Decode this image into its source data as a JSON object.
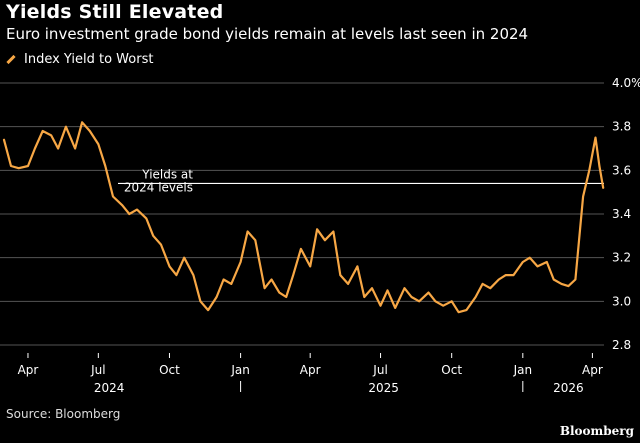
{
  "title": "Yields Still Elevated",
  "subtitle": "Euro investment grade bond yields remain at levels last seen in 2024",
  "source": "Source: Bloomberg",
  "brand": "Bloomberg",
  "colors": {
    "line": "#f7a745",
    "grid": "#555555",
    "reference": "#ffffff",
    "background": "#000000"
  },
  "chart_data": {
    "type": "line",
    "title": "Yields Still Elevated",
    "legend": {
      "placement": "top-left",
      "entries": [
        "Index Yield to Worst"
      ]
    },
    "ylim": [
      2.8,
      4.0
    ],
    "y_axis_side": "right",
    "y_ticks": [
      "2.8",
      "3.0",
      "3.2",
      "3.4",
      "3.6",
      "3.8",
      "4.0%"
    ],
    "x_tick_labels": [
      "Apr",
      "Jul",
      "Oct",
      "Jan",
      "Apr",
      "Jul",
      "Oct",
      "Jan",
      "Apr"
    ],
    "year_labels": [
      "2024",
      "2025",
      "2026"
    ],
    "grid": true,
    "reference_line": {
      "value": 3.54,
      "label_lines": [
        "Yields at",
        "2024 levels"
      ]
    },
    "series": [
      {
        "name": "Index Yield to Worst",
        "x": [
          "2024-03-01",
          "2024-03-10",
          "2024-03-20",
          "2024-04-01",
          "2024-04-10",
          "2024-04-20",
          "2024-05-01",
          "2024-05-10",
          "2024-05-20",
          "2024-06-01",
          "2024-06-10",
          "2024-06-20",
          "2024-07-01",
          "2024-07-10",
          "2024-07-20",
          "2024-08-01",
          "2024-08-10",
          "2024-08-20",
          "2024-09-01",
          "2024-09-10",
          "2024-09-20",
          "2024-10-01",
          "2024-10-10",
          "2024-10-20",
          "2024-11-01",
          "2024-11-10",
          "2024-11-20",
          "2024-12-01",
          "2024-12-10",
          "2024-12-20",
          "2025-01-01",
          "2025-01-10",
          "2025-01-20",
          "2025-02-01",
          "2025-02-10",
          "2025-02-20",
          "2025-03-01",
          "2025-03-10",
          "2025-03-20",
          "2025-04-01",
          "2025-04-10",
          "2025-04-20",
          "2025-05-01",
          "2025-05-10",
          "2025-05-20",
          "2025-06-01",
          "2025-06-10",
          "2025-06-20",
          "2025-07-01",
          "2025-07-10",
          "2025-07-20",
          "2025-08-01",
          "2025-08-10",
          "2025-08-20",
          "2025-09-01",
          "2025-09-10",
          "2025-09-20",
          "2025-10-01",
          "2025-10-10",
          "2025-10-20",
          "2025-11-01",
          "2025-11-10",
          "2025-11-20",
          "2025-12-01",
          "2025-12-10",
          "2025-12-20",
          "2026-01-01",
          "2026-01-10",
          "2026-01-20",
          "2026-02-01",
          "2026-02-10",
          "2026-02-20",
          "2026-03-01",
          "2026-03-10",
          "2026-03-20",
          "2026-03-28",
          "2026-04-05",
          "2026-04-10",
          "2026-04-15"
        ],
        "values": [
          3.74,
          3.62,
          3.61,
          3.62,
          3.7,
          3.78,
          3.76,
          3.7,
          3.8,
          3.7,
          3.82,
          3.78,
          3.72,
          3.62,
          3.48,
          3.44,
          3.4,
          3.42,
          3.38,
          3.3,
          3.26,
          3.16,
          3.12,
          3.2,
          3.12,
          3.0,
          2.96,
          3.02,
          3.1,
          3.08,
          3.18,
          3.32,
          3.28,
          3.06,
          3.1,
          3.04,
          3.02,
          3.12,
          3.24,
          3.16,
          3.33,
          3.28,
          3.32,
          3.12,
          3.08,
          3.16,
          3.02,
          3.06,
          2.98,
          3.05,
          2.97,
          3.06,
          3.02,
          3.0,
          3.04,
          3.0,
          2.98,
          3.0,
          2.95,
          2.96,
          3.02,
          3.08,
          3.06,
          3.1,
          3.12,
          3.12,
          3.18,
          3.2,
          3.16,
          3.18,
          3.1,
          3.08,
          3.07,
          3.1,
          3.48,
          3.6,
          3.75,
          3.62,
          3.52
        ]
      }
    ]
  }
}
